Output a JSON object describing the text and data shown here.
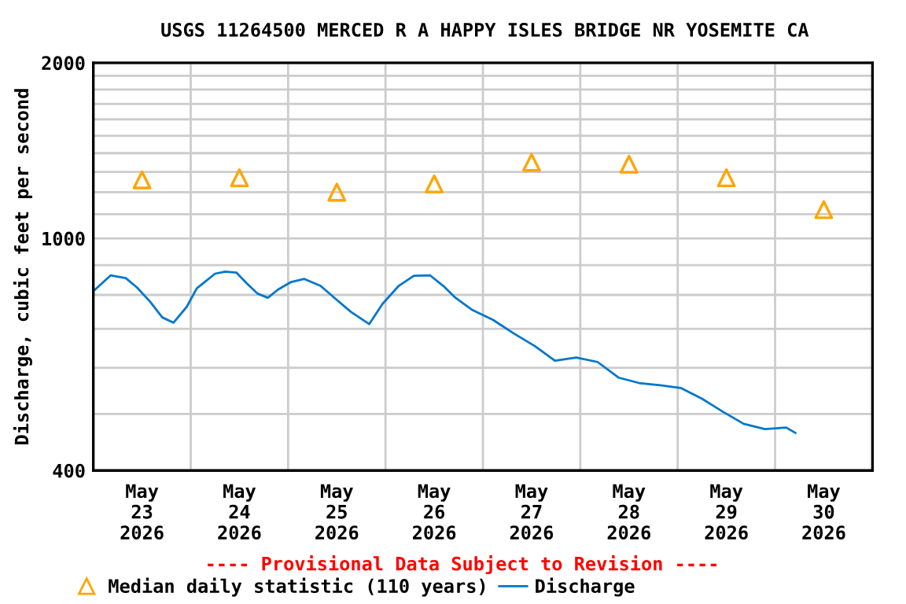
{
  "chart_data": {
    "type": "line",
    "title": "USGS 11264500 MERCED R A HAPPY ISLES BRIDGE NR YOSEMITE CA",
    "ylabel": "Discharge, cubic feet per second",
    "annotations": [
      "---- Provisional Data Subject to Revision ----"
    ],
    "log": "y",
    "grid": true,
    "legend": "bottom",
    "xlim": [
      "2026-05-23T00:00",
      "2026-05-31T00:00"
    ],
    "xticks": [
      {
        "value": "2026-05-23T00:00",
        "label": null
      },
      {
        "value": "2026-05-24T00:00",
        "label": null
      },
      {
        "value": "2026-05-25T00:00",
        "label": null
      },
      {
        "value": "2026-05-26T00:00",
        "label": null
      },
      {
        "value": "2026-05-27T00:00",
        "label": null
      },
      {
        "value": "2026-05-28T00:00",
        "label": null
      },
      {
        "value": "2026-05-29T00:00",
        "label": null
      },
      {
        "value": "2026-05-30T00:00",
        "label": null
      },
      {
        "value": "2026-05-31T00:00",
        "label": null
      },
      {
        "value": "2026-05-23T12:00",
        "label": "May\n23\n2026"
      },
      {
        "value": "2026-05-24T12:00",
        "label": "May\n24\n2026"
      },
      {
        "value": "2026-05-25T12:00",
        "label": "May\n25\n2026"
      },
      {
        "value": "2026-05-26T12:00",
        "label": "May\n26\n2026"
      },
      {
        "value": "2026-05-27T12:00",
        "label": "May\n27\n2026"
      },
      {
        "value": "2026-05-28T12:00",
        "label": "May\n28\n2026"
      },
      {
        "value": "2026-05-29T12:00",
        "label": "May\n29\n2026"
      },
      {
        "value": "2026-05-30T12:00",
        "label": "May\n30\n2026"
      }
    ],
    "ylim": [
      400,
      2000
    ],
    "yticks": [
      400,
      {
        "value": 500,
        "label": null
      },
      {
        "value": 600,
        "label": null
      },
      {
        "value": 700,
        "label": null
      },
      {
        "value": 800,
        "label": null
      },
      {
        "value": 900,
        "label": null
      },
      1000,
      {
        "value": 1100,
        "label": null
      },
      {
        "value": 1200,
        "label": null
      },
      {
        "value": 1300,
        "label": null
      },
      {
        "value": 1400,
        "label": null
      },
      {
        "value": 1500,
        "label": null
      },
      {
        "value": 1600,
        "label": null
      },
      {
        "value": 1700,
        "label": null
      },
      {
        "value": 1800,
        "label": null
      },
      {
        "value": 1900,
        "label": null
      },
      2000
    ],
    "series": [
      {
        "name": "Median daily statistic (110 years)",
        "type": "scatter",
        "marker": "triangle",
        "color": "#ffa500",
        "x": [
          "2026-05-23T12:00",
          "2026-05-24T12:00",
          "2026-05-25T12:00",
          "2026-05-26T12:00",
          "2026-05-27T12:00",
          "2026-05-28T12:00",
          "2026-05-29T12:00",
          "2026-05-30T12:00"
        ],
        "values": [
          1260,
          1270,
          1200,
          1240,
          1350,
          1340,
          1270,
          1120
        ]
      },
      {
        "name": "Discharge",
        "color": "#0077cc",
        "x": [
          "2026-05-23T00:00",
          "2026-05-23T04:15",
          "2026-05-23T08:00",
          "2026-05-23T10:45",
          "2026-05-23T14:00",
          "2026-05-23T17:00",
          "2026-05-23T19:45",
          "2026-05-23T23:00",
          "2026-05-24T01:30",
          "2026-05-24T06:00",
          "2026-05-24T08:30",
          "2026-05-24T11:15",
          "2026-05-24T13:45",
          "2026-05-24T16:30",
          "2026-05-24T19:00",
          "2026-05-24T21:30",
          "2026-05-25T00:45",
          "2026-05-25T04:00",
          "2026-05-25T08:00",
          "2026-05-25T11:45",
          "2026-05-25T15:30",
          "2026-05-25T20:00",
          "2026-05-25T23:15",
          "2026-05-26T03:15",
          "2026-05-26T07:00",
          "2026-05-26T11:00",
          "2026-05-26T14:15",
          "2026-05-26T17:15",
          "2026-05-26T21:15",
          "2026-05-27T02:30",
          "2026-05-27T07:30",
          "2026-05-27T12:45",
          "2026-05-27T17:45",
          "2026-05-27T23:00",
          "2026-05-28T04:15",
          "2026-05-28T09:30",
          "2026-05-28T14:30",
          "2026-05-28T19:45",
          "2026-05-29T00:45",
          "2026-05-29T06:00",
          "2026-05-29T11:15",
          "2026-05-29T16:15",
          "2026-05-29T21:30",
          "2026-05-30T02:45",
          "2026-05-30T05:00"
        ],
        "values": [
          812,
          864,
          855,
          824,
          779,
          732,
          717,
          763,
          821,
          870,
          877,
          874,
          838,
          804,
          791,
          817,
          842,
          852,
          829,
          787,
          748,
          713,
          772,
          829,
          863,
          864,
          829,
          791,
          755,
          725,
          688,
          654,
          617,
          625,
          614,
          577,
          565,
          560,
          554,
          531,
          504,
          481,
          471,
          474,
          464
        ]
      }
    ]
  }
}
